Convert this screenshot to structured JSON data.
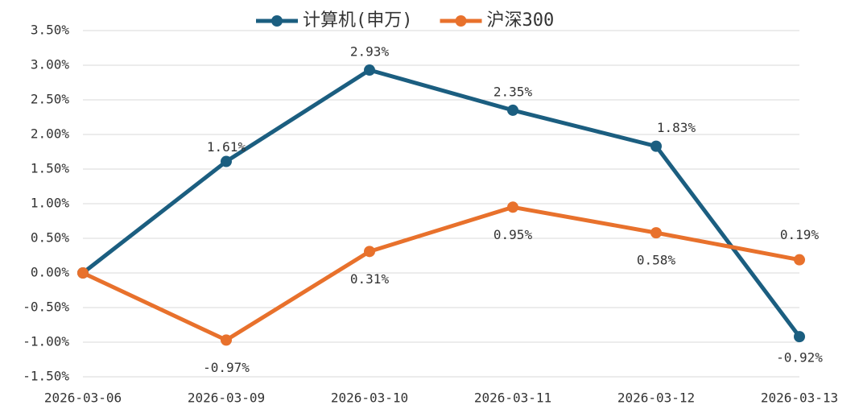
{
  "chart_data": {
    "type": "line",
    "categories": [
      "2026-03-06",
      "2026-03-09",
      "2026-03-10",
      "2026-03-11",
      "2026-03-12",
      "2026-03-13"
    ],
    "series": [
      {
        "name": "计算机(申万)",
        "color": "#1b5e80",
        "values": [
          0,
          1.61,
          2.93,
          2.35,
          1.83,
          -0.92
        ],
        "value_labels": [
          null,
          "1.61%",
          "2.93%",
          "2.35%",
          "1.83%",
          "-0.92%"
        ]
      },
      {
        "name": "沪深300",
        "color": "#e8712c",
        "values": [
          0,
          -0.97,
          0.31,
          0.95,
          0.58,
          0.19
        ],
        "value_labels": [
          null,
          "-0.97%",
          "0.31%",
          "0.95%",
          "0.58%",
          "0.19%"
        ]
      }
    ],
    "ylim": [
      -1.5,
      3.5
    ],
    "yticks": [
      {
        "value": -1.5,
        "label": "-1.50%"
      },
      {
        "value": -1.0,
        "label": "-1.00%"
      },
      {
        "value": -0.5,
        "label": "-0.50%"
      },
      {
        "value": 0,
        "label": "0.00%"
      },
      {
        "value": 0.5,
        "label": "0.50%"
      },
      {
        "value": 1.0,
        "label": "1.00%"
      },
      {
        "value": 1.5,
        "label": "1.50%"
      },
      {
        "value": 2.0,
        "label": "2.00%"
      },
      {
        "value": 2.5,
        "label": "2.50%"
      },
      {
        "value": 3.0,
        "label": "3.00%"
      },
      {
        "value": 3.5,
        "label": "3.50%"
      }
    ],
    "grid": true,
    "legend": "top"
  }
}
